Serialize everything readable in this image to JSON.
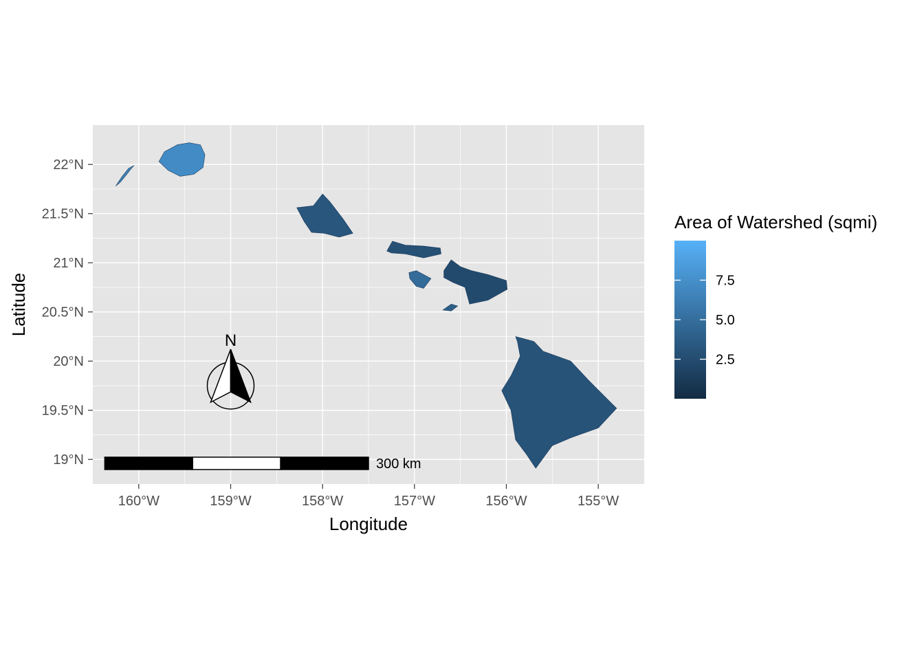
{
  "chart_data": {
    "type": "choropleth-map",
    "xlabel": "Longitude",
    "ylabel": "Latitude",
    "xlim": [
      -160.5,
      -154.5
    ],
    "ylim": [
      18.75,
      22.4
    ],
    "x_ticks": [
      {
        "value": -160,
        "label": "160°W"
      },
      {
        "value": -159,
        "label": "159°W"
      },
      {
        "value": -158,
        "label": "158°W"
      },
      {
        "value": -157,
        "label": "157°W"
      },
      {
        "value": -156,
        "label": "156°W"
      },
      {
        "value": -155,
        "label": "155°W"
      }
    ],
    "y_ticks": [
      {
        "value": 19.0,
        "label": "19°N"
      },
      {
        "value": 19.5,
        "label": "19.5°N"
      },
      {
        "value": 20.0,
        "label": "20°N"
      },
      {
        "value": 20.5,
        "label": "20.5°N"
      },
      {
        "value": 21.0,
        "label": "21°N"
      },
      {
        "value": 21.5,
        "label": "21.5°N"
      },
      {
        "value": 22.0,
        "label": "22°N"
      }
    ],
    "grid": true,
    "panel_color": "#e5e5e5",
    "grid_color": "#ffffff",
    "legend": {
      "title": "Area of Watershed (sqmi)",
      "placement": "right",
      "range": [
        0,
        10
      ],
      "low_color": "#132b43",
      "high_color": "#56b1f7",
      "ticks": [
        {
          "value": 2.5,
          "label": "2.5"
        },
        {
          "value": 5.0,
          "label": "5.0"
        },
        {
          "value": 7.5,
          "label": "7.5"
        }
      ]
    },
    "north_arrow": {
      "label": "N",
      "lon": -159.0,
      "lat": 19.75
    },
    "scale_bar": {
      "label": "300 km",
      "lon_start": -160.37,
      "lon_end": -157.5,
      "lat": 18.96,
      "segments": 3
    },
    "islands": [
      {
        "name": "Niihau",
        "value": 6.5,
        "shape": [
          [
            -160.25,
            21.78
          ],
          [
            -160.2,
            21.82
          ],
          [
            -160.13,
            21.9
          ],
          [
            -160.08,
            21.96
          ],
          [
            -160.05,
            21.99
          ],
          [
            -160.11,
            21.96
          ],
          [
            -160.18,
            21.88
          ],
          [
            -160.23,
            21.81
          ]
        ]
      },
      {
        "name": "Kauai",
        "value": 7.2,
        "shape": [
          [
            -159.78,
            22.03
          ],
          [
            -159.72,
            22.13
          ],
          [
            -159.58,
            22.2
          ],
          [
            -159.45,
            22.22
          ],
          [
            -159.33,
            22.2
          ],
          [
            -159.28,
            22.1
          ],
          [
            -159.3,
            21.97
          ],
          [
            -159.4,
            21.9
          ],
          [
            -159.55,
            21.88
          ],
          [
            -159.68,
            21.94
          ]
        ]
      },
      {
        "name": "Oahu",
        "value": 3.2,
        "shape": [
          [
            -158.28,
            21.56
          ],
          [
            -158.1,
            21.58
          ],
          [
            -158.0,
            21.7
          ],
          [
            -157.92,
            21.62
          ],
          [
            -157.78,
            21.45
          ],
          [
            -157.67,
            21.3
          ],
          [
            -157.82,
            21.26
          ],
          [
            -157.98,
            21.3
          ],
          [
            -158.12,
            21.31
          ],
          [
            -158.2,
            21.42
          ]
        ]
      },
      {
        "name": "Molokai",
        "value": 2.8,
        "shape": [
          [
            -157.3,
            21.12
          ],
          [
            -157.24,
            21.22
          ],
          [
            -157.1,
            21.18
          ],
          [
            -156.9,
            21.17
          ],
          [
            -156.72,
            21.15
          ],
          [
            -156.71,
            21.09
          ],
          [
            -156.9,
            21.05
          ],
          [
            -157.1,
            21.09
          ],
          [
            -157.25,
            21.1
          ]
        ]
      },
      {
        "name": "Lanai",
        "value": 4.8,
        "shape": [
          [
            -157.06,
            20.9
          ],
          [
            -156.98,
            20.92
          ],
          [
            -156.82,
            20.84
          ],
          [
            -156.9,
            20.74
          ],
          [
            -156.98,
            20.76
          ],
          [
            -157.05,
            20.84
          ]
        ]
      },
      {
        "name": "Maui",
        "value": 2.3,
        "shape": [
          [
            -156.68,
            20.92
          ],
          [
            -156.6,
            21.03
          ],
          [
            -156.5,
            20.96
          ],
          [
            -156.38,
            20.92
          ],
          [
            -156.2,
            20.88
          ],
          [
            -156.0,
            20.82
          ],
          [
            -155.99,
            20.73
          ],
          [
            -156.2,
            20.62
          ],
          [
            -156.4,
            20.58
          ],
          [
            -156.45,
            20.75
          ],
          [
            -156.58,
            20.8
          ],
          [
            -156.68,
            20.85
          ]
        ]
      },
      {
        "name": "Kahoolawe",
        "value": 3.8,
        "shape": [
          [
            -156.69,
            20.52
          ],
          [
            -156.6,
            20.58
          ],
          [
            -156.53,
            20.56
          ],
          [
            -156.6,
            20.51
          ]
        ]
      },
      {
        "name": "Hawaii",
        "value": 3.0,
        "shape": [
          [
            -155.9,
            20.25
          ],
          [
            -155.7,
            20.2
          ],
          [
            -155.6,
            20.1
          ],
          [
            -155.3,
            20.0
          ],
          [
            -155.1,
            19.8
          ],
          [
            -154.8,
            19.52
          ],
          [
            -155.0,
            19.32
          ],
          [
            -155.3,
            19.22
          ],
          [
            -155.5,
            19.14
          ],
          [
            -155.68,
            18.91
          ],
          [
            -155.78,
            19.05
          ],
          [
            -155.9,
            19.2
          ],
          [
            -155.95,
            19.5
          ],
          [
            -156.05,
            19.7
          ],
          [
            -155.95,
            19.85
          ],
          [
            -155.85,
            20.05
          ],
          [
            -155.88,
            20.2
          ]
        ]
      }
    ]
  }
}
